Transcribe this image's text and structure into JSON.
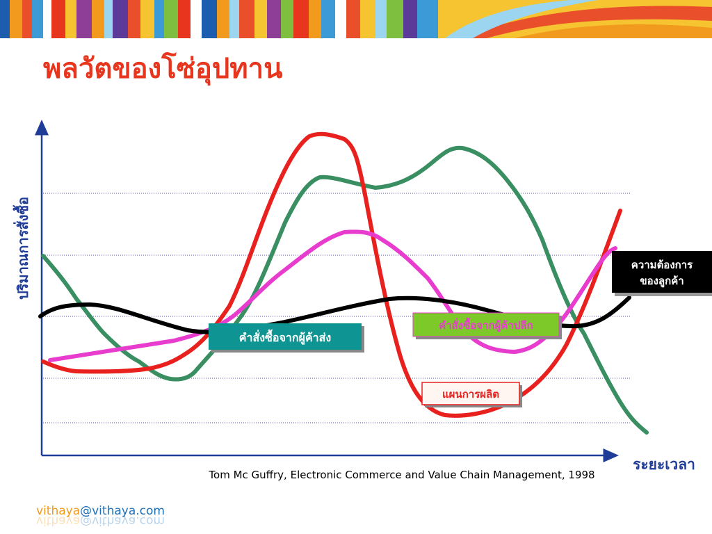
{
  "slide": {
    "title": "พลวัตของโซ่อุปทาน",
    "y_axis_label": "ปริมาณการสั่งซื้อ",
    "x_axis_label": "ระยะเวลา",
    "labels": {
      "customer_demand": [
        "ความต้องการ",
        "ของลูกค้า"
      ],
      "retailer_orders": "คำสั่งซื้อจากผู้ค้าปลีก",
      "wholesaler_orders": "คำสั่งซื้อจากผู้ค้าส่ง",
      "production_plan": "แผนการผลิต"
    },
    "citation": "Tom Mc Guffry, Electronic Commerce and Value Chain Management, 1998",
    "footer": {
      "user": "vithaya",
      "domain": "@vithaya.com"
    }
  }
}
